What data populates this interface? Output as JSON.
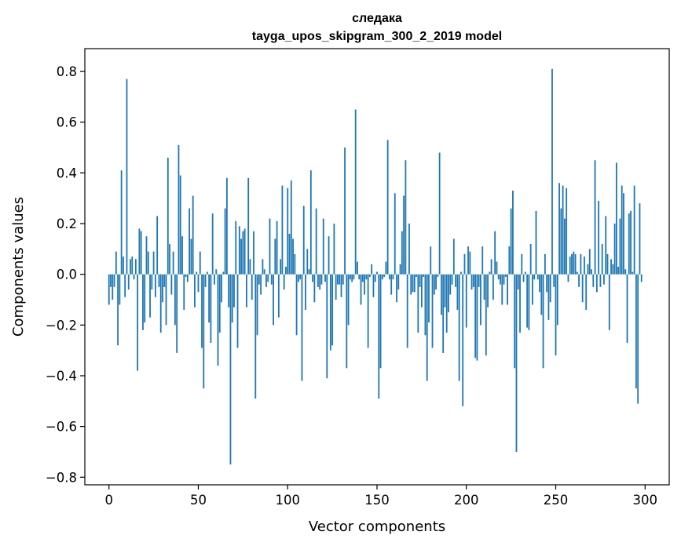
{
  "chart_data": {
    "type": "bar",
    "title": "следака",
    "subtitle": "tayga_upos_skipgram_300_2_2019 model",
    "xlabel": "Vector components",
    "ylabel": "Components values",
    "xlim": [
      -13.5,
      313.5
    ],
    "ylim": [
      -0.83,
      0.89
    ],
    "xticks": [
      0,
      50,
      100,
      150,
      200,
      250,
      300
    ],
    "yticks": [
      -0.8,
      -0.6,
      -0.4,
      -0.2,
      0.0,
      0.2,
      0.4,
      0.6,
      0.8
    ],
    "xtick_labels": [
      "0",
      "50",
      "100",
      "150",
      "200",
      "250",
      "300"
    ],
    "ytick_labels": [
      "−0.8",
      "−0.6",
      "−0.4",
      "−0.2",
      "0.0",
      "0.2",
      "0.4",
      "0.6",
      "0.8"
    ],
    "bar_color": "#1f77b4",
    "grid": false,
    "legend": "none",
    "values": [
      -0.12,
      -0.05,
      -0.1,
      -0.05,
      0.09,
      -0.28,
      -0.12,
      0.41,
      0.07,
      -0.09,
      0.77,
      -0.06,
      0.06,
      0.07,
      -0.02,
      0.06,
      -0.38,
      0.18,
      0.17,
      -0.22,
      -0.19,
      0.15,
      0.09,
      -0.17,
      -0.06,
      0.09,
      -0.09,
      0.23,
      -0.05,
      -0.23,
      -0.11,
      -0.05,
      -0.2,
      0.46,
      0.12,
      -0.08,
      0.09,
      -0.2,
      -0.31,
      0.51,
      0.39,
      0.15,
      -0.14,
      -0.01,
      -0.03,
      0.26,
      0.14,
      0.31,
      -0.13,
      0.01,
      -0.07,
      0.09,
      -0.29,
      -0.45,
      -0.05,
      0.01,
      -0.19,
      -0.27,
      0.24,
      -0.04,
      0.02,
      -0.36,
      -0.23,
      -0.11,
      0.01,
      0.26,
      0.38,
      -0.13,
      -0.75,
      -0.19,
      -0.13,
      0.21,
      -0.29,
      0.19,
      0.14,
      0.17,
      0.18,
      -0.13,
      0.38,
      0.06,
      -0.1,
      0.17,
      -0.49,
      -0.24,
      -0.04,
      -0.08,
      0.06,
      0.02,
      -0.05,
      -0.03,
      0.22,
      -0.04,
      -0.2,
      0.14,
      0.21,
      -0.17,
      0.06,
      0.35,
      -0.06,
      0.03,
      0.34,
      0.16,
      0.37,
      0.14,
      0.08,
      -0.24,
      -0.03,
      -0.02,
      -0.42,
      0.27,
      -0.14,
      0.1,
      0.02,
      0.41,
      -0.03,
      -0.11,
      0.26,
      -0.05,
      -0.06,
      -0.04,
      0.22,
      -0.03,
      -0.41,
      0.15,
      -0.3,
      -0.28,
      0.2,
      -0.1,
      -0.04,
      -0.04,
      -0.09,
      -0.04,
      0.5,
      -0.37,
      -0.2,
      -0.02,
      -0.03,
      -0.02,
      0.65,
      0.05,
      -0.02,
      -0.12,
      -0.03,
      -0.08,
      -0.02,
      -0.29,
      -0.01,
      0.04,
      -0.09,
      -0.03,
      0.01,
      -0.49,
      -0.37,
      -0.02,
      -0.01,
      0.05,
      0.53,
      -0.02,
      -0.08,
      -0.02,
      0.32,
      -0.11,
      -0.06,
      0.04,
      0.17,
      0.31,
      0.45,
      -0.29,
      0.2,
      -0.08,
      -0.07,
      -0.07,
      -0.01,
      -0.23,
      -0.05,
      -0.13,
      -0.01,
      -0.24,
      -0.42,
      -0.19,
      0.11,
      -0.29,
      -0.08,
      -0.06,
      -0.01,
      0.48,
      -0.16,
      -0.31,
      -0.13,
      -0.23,
      -0.15,
      -0.08,
      -0.04,
      0.14,
      -0.05,
      -0.14,
      -0.42,
      0.01,
      -0.52,
      0.08,
      -0.21,
      0.11,
      0.09,
      -0.06,
      -0.05,
      -0.33,
      -0.34,
      -0.05,
      -0.2,
      0.11,
      -0.1,
      -0.32,
      -0.13,
      0.01,
      0.06,
      -0.1,
      0.17,
      0.05,
      -0.02,
      -0.04,
      -0.12,
      -0.04,
      -0.01,
      -0.12,
      0.11,
      0.26,
      0.33,
      -0.37,
      -0.7,
      -0.06,
      -0.23,
      0.08,
      -0.03,
      0.01,
      -0.21,
      -0.22,
      0.12,
      -0.12,
      -0.02,
      0.25,
      -0.02,
      -0.07,
      -0.16,
      -0.37,
      0.08,
      -0.07,
      -0.18,
      -0.11,
      0.81,
      -0.05,
      -0.32,
      -0.2,
      0.36,
      0.26,
      0.35,
      0.22,
      0.34,
      -0.03,
      0.07,
      0.08,
      0.09,
      0.08,
      0.01,
      -0.05,
      0.08,
      -0.11,
      0.07,
      -0.14,
      0.04,
      0.1,
      0.02,
      -0.05,
      0.45,
      -0.07,
      0.29,
      -0.05,
      0.12,
      -0.04,
      0.23,
      0.08,
      -0.22,
      0.06,
      0.04,
      0.2,
      0.44,
      0.03,
      0.22,
      0.35,
      0.32,
      0.02,
      -0.27,
      0.24,
      0.25,
      0.01,
      0.35,
      -0.45,
      -0.51,
      0.28,
      -0.03
    ]
  }
}
